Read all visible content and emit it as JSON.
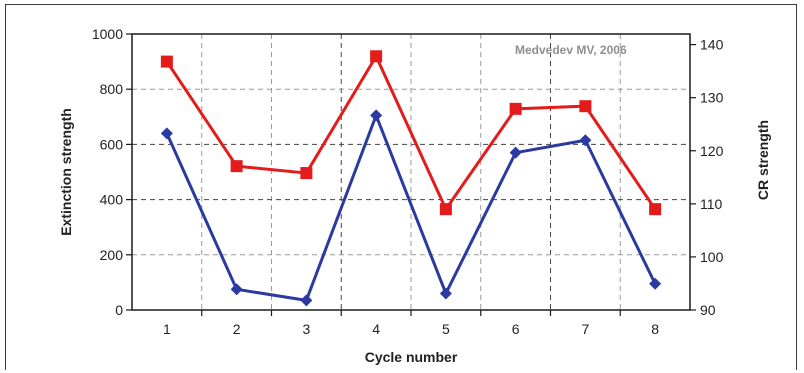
{
  "chart_data": {
    "type": "line",
    "title": "",
    "annotation": "Medvedev MV, 2006",
    "xlabel": "Cycle number",
    "ylabel_left": "Extinction strength",
    "ylabel_right": "CR strength",
    "categories": [
      "1",
      "2",
      "3",
      "4",
      "5",
      "6",
      "7",
      "8"
    ],
    "ylim_left": [
      0,
      1000
    ],
    "yticks_left": [
      "0",
      "200",
      "400",
      "600",
      "800",
      "1000"
    ],
    "ylim_right": [
      90,
      142
    ],
    "yticks_right": [
      "90",
      "100",
      "110",
      "120",
      "130",
      "140"
    ],
    "grid": true,
    "series": [
      {
        "axis": "left",
        "color": "#2b3aa0",
        "marker": "diamond",
        "values": [
          640,
          75,
          35,
          705,
          60,
          570,
          615,
          95
        ]
      },
      {
        "axis": "right",
        "color": "#e31b1b",
        "marker": "square",
        "values": [
          136.8,
          117.1,
          115.8,
          137.8,
          109.0,
          127.9,
          128.4,
          109.0
        ]
      }
    ]
  }
}
